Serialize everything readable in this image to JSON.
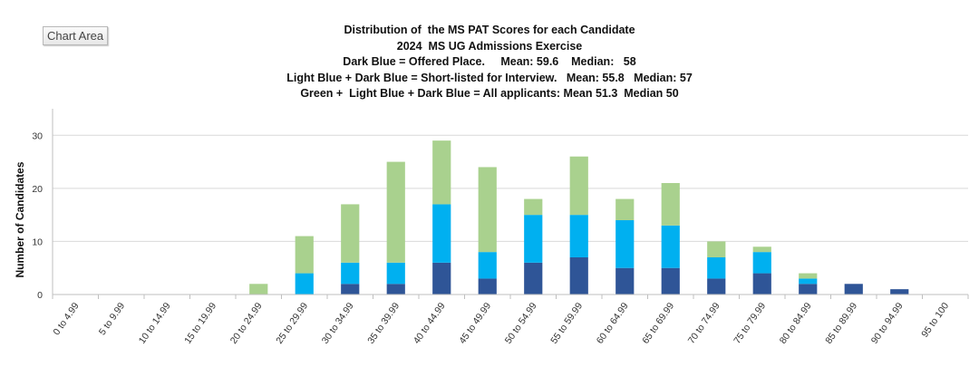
{
  "overlay": {
    "chart_area_label": "Chart Area"
  },
  "chart_data": {
    "type": "bar",
    "stacked": true,
    "title_lines": [
      "Distribution of  the MS PAT Scores for each Candidate",
      "2024  MS UG Admissions Exercise",
      "Dark Blue = Offered Place.     Mean: 59.6    Median:   58",
      "Light Blue + Dark Blue = Short-listed for Interview.   Mean: 55.8   Median: 57",
      "Green +  Light Blue + Dark Blue = All applicants: Mean 51.3  Median 50"
    ],
    "xlabel": "",
    "ylabel": "Number of Candidates",
    "ylim": [
      0,
      35
    ],
    "yticks": [
      0,
      10,
      20,
      30
    ],
    "grid": true,
    "legend": "none",
    "categories": [
      "0 to 4.99",
      "5 to 9.99",
      "10 to 14.99",
      "15 to 19.99",
      "20 to 24.99",
      "25 to 29.99",
      "30 to 34.99",
      "35 to 39.99",
      "40 to 44.99",
      "45 to 49.99",
      "50 to 54.99",
      "55 to 59.99",
      "60 to 64.99",
      "65 to 69.99",
      "70 to 74.99",
      "75 to 79.99",
      "80 to 84.99",
      "85 to 89.99",
      "90 to 94.99",
      "95 to 100"
    ],
    "series": [
      {
        "values": [
          0,
          0,
          0,
          0,
          0,
          0,
          2,
          2,
          6,
          3,
          6,
          7,
          5,
          5,
          3,
          4,
          2,
          2,
          1,
          0
        ],
        "color": "#2f5597"
      },
      {
        "values": [
          0,
          0,
          0,
          0,
          0,
          4,
          4,
          4,
          11,
          5,
          9,
          8,
          9,
          8,
          4,
          4,
          1,
          0,
          0,
          0
        ],
        "color": "#00b0f0"
      },
      {
        "values": [
          0,
          0,
          0,
          0,
          2,
          7,
          11,
          19,
          12,
          16,
          3,
          11,
          4,
          8,
          3,
          1,
          1,
          0,
          0,
          0
        ],
        "color": "#a9d18e"
      }
    ]
  }
}
